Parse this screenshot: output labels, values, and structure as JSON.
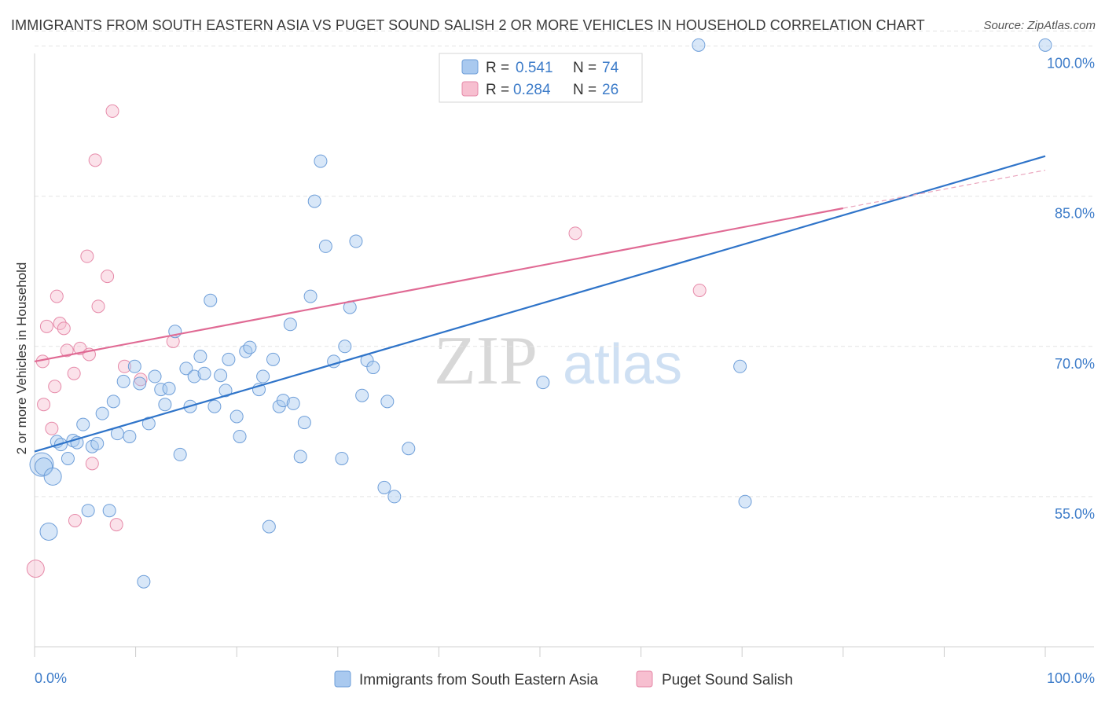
{
  "title": "IMMIGRANTS FROM SOUTH EASTERN ASIA VS PUGET SOUND SALISH 2 OR MORE VEHICLES IN HOUSEHOLD CORRELATION CHART",
  "source": "Source: ZipAtlas.com",
  "watermark": {
    "zip": "ZIP",
    "atlas": "atlas"
  },
  "legend": {
    "r_label": "R =",
    "n_label": "N =",
    "series": [
      {
        "r": "0.541",
        "n": "74"
      },
      {
        "r": "0.284",
        "n": "26"
      }
    ]
  },
  "chart_data": {
    "type": "scatter",
    "title": "IMMIGRANTS FROM SOUTH EASTERN ASIA VS PUGET SOUND SALISH 2 OR MORE VEHICLES IN HOUSEHOLD CORRELATION CHART",
    "xlabel": "",
    "ylabel": "2 or more Vehicles in Household",
    "xlim": [
      0,
      100
    ],
    "ylim": [
      40,
      101.5
    ],
    "x_tick_labels": [
      "0.0%",
      "100.0%"
    ],
    "y_ticks": [
      55,
      70,
      85,
      100
    ],
    "y_tick_labels": [
      "55.0%",
      "70.0%",
      "85.0%",
      "100.0%"
    ],
    "grid": true,
    "legend_position": "top-center",
    "colors": {
      "series1": "#a9c9ef",
      "series1_line": "#2f74c9",
      "series2": "#f7bfd0",
      "series2_line": "#e06a94"
    },
    "series": [
      {
        "name": "Immigrants from South Eastern Asia",
        "r": 0.541,
        "n": 74,
        "trend": {
          "x": [
            0,
            100
          ],
          "y": [
            59.5,
            89.0
          ]
        },
        "points": [
          [
            0.7,
            58.2,
            3
          ],
          [
            0.9,
            58.0,
            2
          ],
          [
            1.4,
            51.5,
            2
          ],
          [
            1.8,
            57.0,
            2
          ],
          [
            2.2,
            60.5,
            1
          ],
          [
            2.6,
            60.2,
            1
          ],
          [
            3.3,
            58.8,
            1
          ],
          [
            3.8,
            60.6,
            1
          ],
          [
            4.2,
            60.4,
            1
          ],
          [
            4.8,
            62.2,
            1
          ],
          [
            5.3,
            53.6,
            1
          ],
          [
            5.7,
            60.0,
            1
          ],
          [
            6.2,
            60.3,
            1
          ],
          [
            6.7,
            63.3,
            1
          ],
          [
            7.4,
            53.6,
            1
          ],
          [
            7.8,
            64.5,
            1
          ],
          [
            8.2,
            61.3,
            1
          ],
          [
            8.8,
            66.5,
            1
          ],
          [
            9.4,
            61.0,
            1
          ],
          [
            9.9,
            68.0,
            1
          ],
          [
            10.4,
            66.3,
            1
          ],
          [
            10.8,
            46.5,
            1
          ],
          [
            11.3,
            62.3,
            1
          ],
          [
            11.9,
            67.0,
            1
          ],
          [
            12.5,
            65.7,
            1
          ],
          [
            12.9,
            64.2,
            1
          ],
          [
            13.3,
            65.8,
            1
          ],
          [
            13.9,
            71.5,
            1
          ],
          [
            14.4,
            59.2,
            1
          ],
          [
            15.0,
            67.8,
            1
          ],
          [
            15.4,
            64.0,
            1
          ],
          [
            15.8,
            67.0,
            1
          ],
          [
            16.4,
            69.0,
            1
          ],
          [
            16.8,
            67.3,
            1
          ],
          [
            17.4,
            74.6,
            1
          ],
          [
            17.8,
            64.0,
            1
          ],
          [
            18.4,
            67.1,
            1
          ],
          [
            18.9,
            65.6,
            1
          ],
          [
            19.2,
            68.7,
            1
          ],
          [
            20.0,
            63.0,
            1
          ],
          [
            20.3,
            61.0,
            1
          ],
          [
            20.9,
            69.5,
            1
          ],
          [
            21.3,
            69.9,
            1
          ],
          [
            22.2,
            65.7,
            1
          ],
          [
            22.6,
            67.0,
            1
          ],
          [
            23.2,
            52.0,
            1
          ],
          [
            23.6,
            68.7,
            1
          ],
          [
            24.2,
            64.0,
            1
          ],
          [
            24.6,
            64.6,
            1
          ],
          [
            25.3,
            72.2,
            1
          ],
          [
            25.6,
            64.3,
            1
          ],
          [
            26.3,
            59.0,
            1
          ],
          [
            26.7,
            62.4,
            1
          ],
          [
            27.3,
            75.0,
            1
          ],
          [
            27.7,
            84.5,
            1
          ],
          [
            28.3,
            88.5,
            1
          ],
          [
            28.8,
            80.0,
            1
          ],
          [
            29.6,
            68.5,
            1
          ],
          [
            30.4,
            58.8,
            1
          ],
          [
            30.7,
            70.0,
            1
          ],
          [
            31.2,
            73.9,
            1
          ],
          [
            31.8,
            80.5,
            1
          ],
          [
            32.4,
            65.1,
            1
          ],
          [
            32.9,
            68.6,
            1
          ],
          [
            33.5,
            67.9,
            1
          ],
          [
            34.6,
            55.9,
            1
          ],
          [
            34.9,
            64.5,
            1
          ],
          [
            35.6,
            55.0,
            1
          ],
          [
            37.0,
            59.8,
            1
          ],
          [
            50.3,
            66.4,
            1
          ],
          [
            65.7,
            100.1,
            1
          ],
          [
            69.8,
            68.0,
            1
          ],
          [
            70.3,
            54.5,
            1
          ],
          [
            100.0,
            100.1,
            1
          ]
        ]
      },
      {
        "name": "Puget Sound Salish",
        "r": 0.284,
        "n": 26,
        "trend": {
          "x": [
            0,
            80
          ],
          "y": [
            68.5,
            83.8
          ]
        },
        "trend_dashed": {
          "x": [
            80,
            100
          ],
          "y": [
            83.8,
            87.6
          ]
        },
        "points": [
          [
            0.1,
            47.8
          ],
          [
            0.8,
            68.5
          ],
          [
            0.9,
            64.2
          ],
          [
            1.2,
            72.0
          ],
          [
            1.7,
            61.8
          ],
          [
            2.0,
            66.0
          ],
          [
            2.2,
            75.0
          ],
          [
            2.5,
            72.3
          ],
          [
            2.9,
            71.8
          ],
          [
            3.2,
            69.6
          ],
          [
            3.9,
            67.3
          ],
          [
            4.0,
            52.6
          ],
          [
            4.5,
            69.8
          ],
          [
            5.2,
            79.0
          ],
          [
            5.4,
            69.2
          ],
          [
            5.7,
            58.3
          ],
          [
            6.0,
            88.6
          ],
          [
            6.3,
            74.0
          ],
          [
            7.2,
            77.0
          ],
          [
            7.7,
            93.5
          ],
          [
            8.1,
            52.2
          ],
          [
            8.9,
            68.0
          ],
          [
            10.5,
            66.7
          ],
          [
            13.7,
            70.5
          ],
          [
            53.5,
            81.3
          ],
          [
            65.8,
            75.6
          ]
        ]
      }
    ]
  },
  "bottom_legend": [
    "Immigrants from South Eastern Asia",
    "Puget Sound Salish"
  ]
}
